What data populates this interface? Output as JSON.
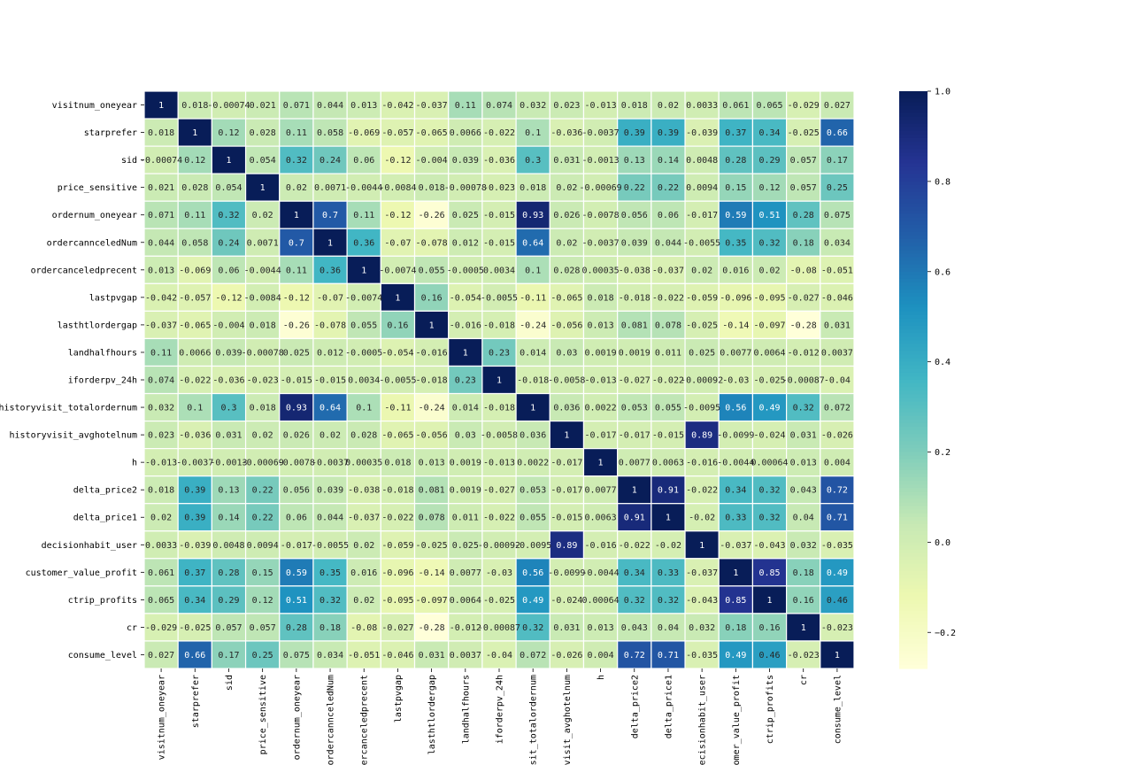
{
  "chart_data": {
    "type": "heatmap",
    "title": "",
    "xlabel": "",
    "ylabel": "",
    "labels": [
      "visitnum_oneyear",
      "starprefer",
      "sid",
      "price_sensitive",
      "ordernum_oneyear",
      "ordercannceledNum",
      "ordercanceledprecent",
      "lastpvgap",
      "lasthtlordergap",
      "landhalfhours",
      "iforderpv_24h",
      "historyvisit_totalordernum",
      "historyvisit_avghotelnum",
      "h",
      "delta_price2",
      "delta_price1",
      "decisionhabit_user",
      "customer_value_profit",
      "ctrip_profits",
      "cr",
      "consume_level"
    ],
    "x_tick_labels": [
      "visitnum_oneyear",
      "starprefer",
      "sid",
      "price_sensitive",
      "ordernum_oneyear",
      "ordercannceledNum",
      "ordercanceledprecent",
      "lastpvgap",
      "lasthtlordergap",
      "landhalfhours",
      "iforderpv_24h",
      "yvisit_totalordernum",
      "oryvisit_avghotelnum",
      "h",
      "delta_price2",
      "delta_price1",
      "decisionhabit_user",
      "ustomer_value_profit",
      "ctrip_profits",
      "cr",
      "consume_level"
    ],
    "values": [
      [
        "1",
        "0.018",
        "-0.00074",
        "0.021",
        "0.071",
        "0.044",
        "0.013",
        "-0.042",
        "-0.037",
        "0.11",
        "0.074",
        "0.032",
        "0.023",
        "-0.013",
        "0.018",
        "0.02",
        "0.0033",
        "0.061",
        "0.065",
        "-0.029",
        "0.027"
      ],
      [
        "0.018",
        "1",
        "0.12",
        "0.028",
        "0.11",
        "0.058",
        "-0.069",
        "-0.057",
        "-0.065",
        "0.0066",
        "-0.022",
        "0.1",
        "-0.036",
        "-0.0037",
        "0.39",
        "0.39",
        "-0.039",
        "0.37",
        "0.34",
        "-0.025",
        "0.66"
      ],
      [
        "-0.00074",
        "0.12",
        "1",
        "0.054",
        "0.32",
        "0.24",
        "0.06",
        "-0.12",
        "-0.004",
        "0.039",
        "-0.036",
        "0.3",
        "0.031",
        "-0.0013",
        "0.13",
        "0.14",
        "0.0048",
        "0.28",
        "0.29",
        "0.057",
        "0.17"
      ],
      [
        "0.021",
        "0.028",
        "0.054",
        "1",
        "0.02",
        "0.0071",
        "-0.0044",
        "-0.0084",
        "0.018",
        "-0.00078",
        "-0.023",
        "0.018",
        "0.02",
        "-0.00069",
        "0.22",
        "0.22",
        "0.0094",
        "0.15",
        "0.12",
        "0.057",
        "0.25"
      ],
      [
        "0.071",
        "0.11",
        "0.32",
        "0.02",
        "1",
        "0.7",
        "0.11",
        "-0.12",
        "-0.26",
        "0.025",
        "-0.015",
        "0.93",
        "0.026",
        "-0.0078",
        "0.056",
        "0.06",
        "-0.017",
        "0.59",
        "0.51",
        "0.28",
        "0.075"
      ],
      [
        "0.044",
        "0.058",
        "0.24",
        "0.0071",
        "0.7",
        "1",
        "0.36",
        "-0.07",
        "-0.078",
        "0.012",
        "-0.015",
        "0.64",
        "0.02",
        "-0.0037",
        "0.039",
        "0.044",
        "-0.0055",
        "0.35",
        "0.32",
        "0.18",
        "0.034"
      ],
      [
        "0.013",
        "-0.069",
        "0.06",
        "-0.0044",
        "0.11",
        "0.36",
        "1",
        "-0.0074",
        "0.055",
        "-0.0005",
        "0.0034",
        "0.1",
        "0.028",
        "0.00035",
        "-0.038",
        "-0.037",
        "0.02",
        "0.016",
        "0.02",
        "-0.08",
        "-0.051"
      ],
      [
        "-0.042",
        "-0.057",
        "-0.12",
        "-0.0084",
        "-0.12",
        "-0.07",
        "-0.0074",
        "1",
        "0.16",
        "-0.054",
        "-0.0055",
        "-0.11",
        "-0.065",
        "0.018",
        "-0.018",
        "-0.022",
        "-0.059",
        "-0.096",
        "-0.095",
        "-0.027",
        "-0.046"
      ],
      [
        "-0.037",
        "-0.065",
        "-0.004",
        "0.018",
        "-0.26",
        "-0.078",
        "0.055",
        "0.16",
        "1",
        "-0.016",
        "-0.018",
        "-0.24",
        "-0.056",
        "0.013",
        "0.081",
        "0.078",
        "-0.025",
        "-0.14",
        "-0.097",
        "-0.28",
        "0.031"
      ],
      [
        "0.11",
        "0.0066",
        "0.039",
        "-0.00078",
        "0.025",
        "0.012",
        "-0.0005",
        "-0.054",
        "-0.016",
        "1",
        "0.23",
        "0.014",
        "0.03",
        "0.0019",
        "0.0019",
        "0.011",
        "0.025",
        "0.0077",
        "0.0064",
        "-0.012",
        "0.0037"
      ],
      [
        "0.074",
        "-0.022",
        "-0.036",
        "-0.023",
        "-0.015",
        "-0.015",
        "0.0034",
        "-0.0055",
        "-0.018",
        "0.23",
        "1",
        "-0.018",
        "-0.0058",
        "-0.013",
        "-0.027",
        "-0.022",
        "-0.00092",
        "-0.03",
        "-0.025",
        "-0.00087",
        "-0.04"
      ],
      [
        "0.032",
        "0.1",
        "0.3",
        "0.018",
        "0.93",
        "0.64",
        "0.1",
        "-0.11",
        "-0.24",
        "0.014",
        "-0.018",
        "1",
        "0.036",
        "0.0022",
        "0.053",
        "0.055",
        "-0.0095",
        "0.56",
        "0.49",
        "0.32",
        "0.072"
      ],
      [
        "0.023",
        "-0.036",
        "0.031",
        "0.02",
        "0.026",
        "0.02",
        "0.028",
        "-0.065",
        "-0.056",
        "0.03",
        "-0.0058",
        "0.036",
        "1",
        "-0.017",
        "-0.017",
        "-0.015",
        "0.89",
        "-0.0099",
        "-0.024",
        "0.031",
        "-0.026"
      ],
      [
        "-0.013",
        "-0.0037",
        "-0.0013",
        "-0.00069",
        "-0.0078",
        "-0.0037",
        "0.00035",
        "0.018",
        "0.013",
        "0.0019",
        "-0.013",
        "0.0022",
        "-0.017",
        "1",
        "0.0077",
        "0.0063",
        "-0.016",
        "-0.0044",
        "0.00064",
        "0.013",
        "0.004"
      ],
      [
        "0.018",
        "0.39",
        "0.13",
        "0.22",
        "0.056",
        "0.039",
        "-0.038",
        "-0.018",
        "0.081",
        "0.0019",
        "-0.027",
        "0.053",
        "-0.017",
        "0.0077",
        "1",
        "0.91",
        "-0.022",
        "0.34",
        "0.32",
        "0.043",
        "0.72"
      ],
      [
        "0.02",
        "0.39",
        "0.14",
        "0.22",
        "0.06",
        "0.044",
        "-0.037",
        "-0.022",
        "0.078",
        "0.011",
        "-0.022",
        "0.055",
        "-0.015",
        "0.0063",
        "0.91",
        "1",
        "-0.02",
        "0.33",
        "0.32",
        "0.04",
        "0.71"
      ],
      [
        "0.0033",
        "-0.039",
        "0.0048",
        "0.0094",
        "-0.017",
        "-0.0055",
        "0.02",
        "-0.059",
        "-0.025",
        "0.025",
        "-0.00092",
        "-0.0095",
        "0.89",
        "-0.016",
        "-0.022",
        "-0.02",
        "1",
        "-0.037",
        "-0.043",
        "0.032",
        "-0.035"
      ],
      [
        "0.061",
        "0.37",
        "0.28",
        "0.15",
        "0.59",
        "0.35",
        "0.016",
        "-0.096",
        "-0.14",
        "0.0077",
        "-0.03",
        "0.56",
        "-0.0099",
        "-0.0044",
        "0.34",
        "0.33",
        "-0.037",
        "1",
        "0.85",
        "0.18",
        "0.49"
      ],
      [
        "0.065",
        "0.34",
        "0.29",
        "0.12",
        "0.51",
        "0.32",
        "0.02",
        "-0.095",
        "-0.097",
        "0.0064",
        "-0.025",
        "0.49",
        "-0.024",
        "0.00064",
        "0.32",
        "0.32",
        "-0.043",
        "0.85",
        "1",
        "0.16",
        "0.46"
      ],
      [
        "-0.029",
        "-0.025",
        "0.057",
        "0.057",
        "0.28",
        "0.18",
        "-0.08",
        "-0.027",
        "-0.28",
        "-0.012",
        "-0.00087",
        "0.32",
        "0.031",
        "0.013",
        "0.043",
        "0.04",
        "0.032",
        "0.18",
        "0.16",
        "1",
        "-0.023"
      ],
      [
        "0.027",
        "0.66",
        "0.17",
        "0.25",
        "0.075",
        "0.034",
        "-0.051",
        "-0.046",
        "0.031",
        "0.0037",
        "-0.04",
        "0.072",
        "-0.026",
        "0.004",
        "0.72",
        "0.71",
        "-0.035",
        "0.49",
        "0.46",
        "-0.023",
        "1"
      ]
    ],
    "vmin": -0.28,
    "vmax": 1.0,
    "colormap": "YlGnBu",
    "colorbar_ticks": [
      "1.0",
      "0.8",
      "0.6",
      "0.4",
      "0.2",
      "0.0",
      "−0.2"
    ],
    "colorbar_tick_values": [
      1.0,
      0.8,
      0.6,
      0.4,
      0.2,
      0.0,
      -0.2
    ],
    "annotated": true,
    "grid_color": "#ffffff",
    "colors": {
      "text_dark": "#262626",
      "text_light": "#ffffff",
      "axis": "#000000"
    }
  }
}
